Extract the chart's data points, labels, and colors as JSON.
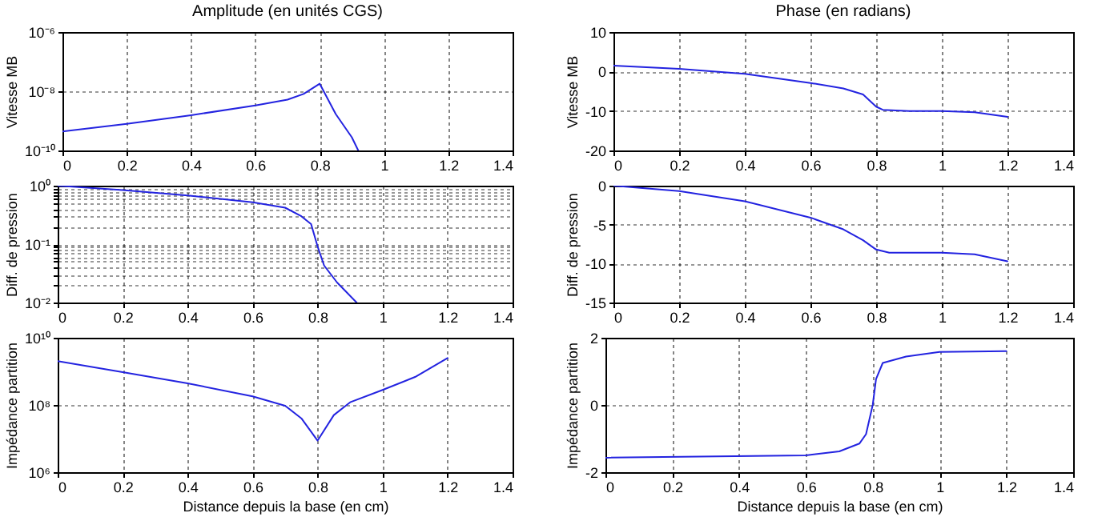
{
  "chart_data": [
    {
      "type": "line",
      "title": "Amplitude (en unités CGS)",
      "ylabel": "Vitesse MB",
      "log": "y",
      "grid": true,
      "xlim": [
        0,
        1.4
      ],
      "xticks": [
        0,
        0.2,
        0.4,
        0.6,
        0.8,
        1,
        1.2,
        1.4
      ],
      "ylim": [
        1e-10,
        1e-06
      ],
      "yticks": [
        {
          "value": 1e-10,
          "label": "10⁻¹⁰"
        },
        {
          "value": 1e-08,
          "label": "10⁻⁸"
        },
        {
          "value": 1e-06,
          "label": "10⁻⁶"
        }
      ],
      "series": [
        {
          "color": "#2323e0",
          "x": [
            0,
            0.2,
            0.4,
            0.6,
            0.7,
            0.75,
            0.8,
            0.85,
            0.9,
            0.92
          ],
          "values": [
            4.4e-10,
            7.9e-10,
            1.55e-09,
            3.3e-09,
            5.2e-09,
            8.1e-09,
            1.8e-08,
            1.7e-09,
            2.8e-10,
            1e-10
          ]
        }
      ]
    },
    {
      "type": "line",
      "title": "Phase (en radians)",
      "ylabel": "Vitesse MB",
      "grid": true,
      "xlim": [
        0,
        1.4
      ],
      "xticks": [
        0,
        0.2,
        0.4,
        0.6,
        0.8,
        1,
        1.2,
        1.4
      ],
      "ylim": [
        -20,
        10
      ],
      "yticks": [
        -20,
        -10,
        0,
        10
      ],
      "series": [
        {
          "color": "#2323e0",
          "x": [
            0,
            0.2,
            0.4,
            0.6,
            0.7,
            0.76,
            0.8,
            0.82,
            0.9,
            1,
            1.1,
            1.2
          ],
          "values": [
            1.5,
            0.7,
            -0.6,
            -2.9,
            -4.3,
            -5.8,
            -8.9,
            -9.7,
            -10,
            -10,
            -10.3,
            -11.5
          ]
        }
      ]
    },
    {
      "type": "line",
      "ylabel": "Diff.  de pression",
      "log": "y",
      "grid": true,
      "xlim": [
        0,
        1.4
      ],
      "xticks": [
        0,
        0.2,
        0.4,
        0.6,
        0.8,
        1,
        1.2,
        1.4
      ],
      "ylim": [
        0.01,
        1
      ],
      "yticks": [
        {
          "value": 0.01,
          "label": "10⁻²"
        },
        {
          "value": 0.02,
          "label": null
        },
        {
          "value": 0.03,
          "label": null
        },
        {
          "value": 0.04,
          "label": null
        },
        {
          "value": 0.05,
          "label": null
        },
        {
          "value": 0.06,
          "label": null
        },
        {
          "value": 0.07,
          "label": null
        },
        {
          "value": 0.08,
          "label": null
        },
        {
          "value": 0.09,
          "label": null
        },
        {
          "value": 0.1,
          "label": "10⁻¹"
        },
        {
          "value": 0.2,
          "label": null
        },
        {
          "value": 0.3,
          "label": null
        },
        {
          "value": 0.4,
          "label": null
        },
        {
          "value": 0.5,
          "label": null
        },
        {
          "value": 0.6,
          "label": null
        },
        {
          "value": 0.7,
          "label": null
        },
        {
          "value": 0.8,
          "label": null
        },
        {
          "value": 0.9,
          "label": null
        },
        {
          "value": 1,
          "label": "10⁰"
        }
      ],
      "series": [
        {
          "color": "#2323e0",
          "x": [
            0,
            0.2,
            0.4,
            0.6,
            0.7,
            0.75,
            0.78,
            0.8,
            0.82,
            0.86,
            0.92
          ],
          "values": [
            1,
            0.84,
            0.68,
            0.52,
            0.42,
            0.3,
            0.22,
            0.091,
            0.043,
            0.022,
            0.01
          ]
        }
      ]
    },
    {
      "type": "line",
      "ylabel": "Diff.  de pression",
      "grid": true,
      "xlim": [
        0,
        1.4
      ],
      "xticks": [
        0,
        0.2,
        0.4,
        0.6,
        0.8,
        1,
        1.2,
        1.4
      ],
      "ylim": [
        -15,
        0
      ],
      "yticks": [
        -15,
        -10,
        -5,
        0
      ],
      "series": [
        {
          "color": "#2323e0",
          "x": [
            0,
            0.2,
            0.4,
            0.6,
            0.7,
            0.76,
            0.8,
            0.84,
            1,
            1.1,
            1.2
          ],
          "values": [
            0,
            -0.7,
            -2,
            -4.1,
            -5.6,
            -7,
            -8.2,
            -8.6,
            -8.6,
            -8.8,
            -9.7
          ]
        }
      ]
    },
    {
      "type": "line",
      "xlabel": "Distance depuis la base (en cm)",
      "ylabel": "Impédance partition",
      "log": "y",
      "grid": true,
      "xlim": [
        0,
        1.4
      ],
      "xticks": [
        0,
        0.2,
        0.4,
        0.6,
        0.8,
        1,
        1.2,
        1.4
      ],
      "ylim": [
        1000000.0,
        10000000000.0
      ],
      "yticks": [
        {
          "value": 1000000.0,
          "label": "10⁶"
        },
        {
          "value": 100000000.0,
          "label": "10⁸"
        },
        {
          "value": 10000000000.0,
          "label": "10¹⁰"
        }
      ],
      "series": [
        {
          "color": "#2323e0",
          "x": [
            0,
            0.2,
            0.4,
            0.6,
            0.7,
            0.75,
            0.8,
            0.85,
            0.9,
            1,
            1.1,
            1.2
          ],
          "values": [
            2000000000.0,
            950000000.0,
            440000000.0,
            180000000.0,
            95000000.0,
            40000000.0,
            8700000.0,
            50000000.0,
            120000000.0,
            280000000.0,
            680000000.0,
            2500000000.0
          ]
        }
      ]
    },
    {
      "type": "line",
      "xlabel": "Distance depuis la base (en cm)",
      "ylabel": "Impédance partition",
      "grid": true,
      "xlim": [
        0,
        1.4
      ],
      "xticks": [
        0,
        0.2,
        0.4,
        0.6,
        0.8,
        1,
        1.2,
        1.4
      ],
      "ylim": [
        -2,
        2
      ],
      "yticks": [
        -2,
        0,
        2
      ],
      "series": [
        {
          "color": "#2323e0",
          "x": [
            0,
            0.6,
            0.7,
            0.76,
            0.78,
            0.8,
            0.81,
            0.83,
            0.9,
            1,
            1.2
          ],
          "values": [
            -1.57,
            -1.5,
            -1.38,
            -1.15,
            -0.87,
            0,
            0.77,
            1.25,
            1.44,
            1.58,
            1.6
          ]
        }
      ]
    }
  ]
}
